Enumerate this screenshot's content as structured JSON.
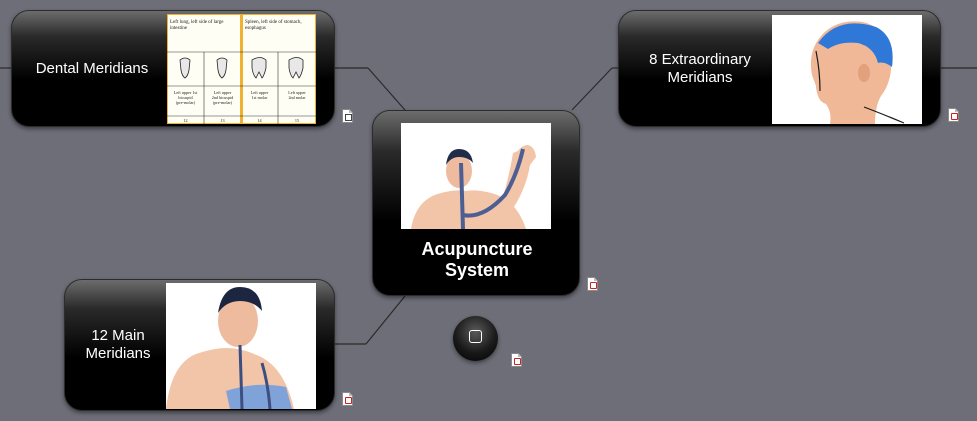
{
  "colors": {
    "background": "#6e6e79",
    "node_fill": "#000000",
    "node_text": "#ffffff",
    "connector": "#2a2a2a",
    "chart_highlight": "#f0a020"
  },
  "central": {
    "label": "Acupuncture System"
  },
  "branches": {
    "dental": {
      "label": "Dental Meridians",
      "chart": {
        "header_left": "Left lung, left side of large intestine",
        "header_right": "Spleen, left side of stomach, esophagus",
        "teeth": [
          {
            "label": "Left upper 1st bicuspid (pre-molar)",
            "number": "12"
          },
          {
            "label": "Left upper 2nd bicuspid (pre-molar)",
            "number": "13"
          },
          {
            "label": "Left upper 1st molar",
            "number": "14"
          },
          {
            "label": "Left upper 2nd molar",
            "number": "15"
          }
        ]
      }
    },
    "extraordinary": {
      "label": "8 Extraordinary Meridians"
    },
    "main": {
      "label": "12 Main Meridians"
    }
  },
  "icons": {
    "attachment": "pdf-attachment-icon",
    "dental_attachment": "document-attachment-icon",
    "floating_button": "square-icon"
  }
}
